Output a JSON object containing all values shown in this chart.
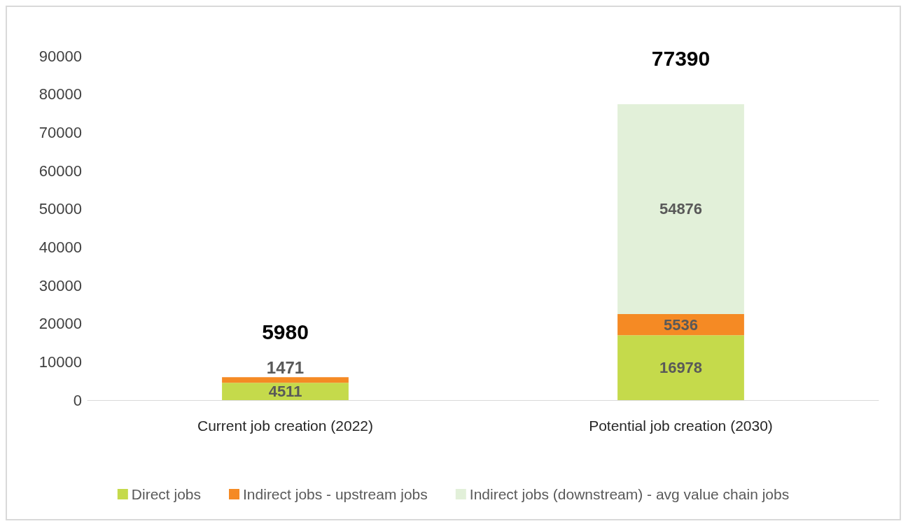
{
  "chart_data": {
    "type": "bar",
    "stacked": true,
    "categories": [
      "Current job creation (2022)",
      "Potential job creation (2030)"
    ],
    "series": [
      {
        "name": "Direct jobs",
        "color": "#c5da4b",
        "values": [
          4511,
          16978
        ]
      },
      {
        "name": "Indirect jobs - upstream jobs",
        "color": "#f58a24",
        "values": [
          1471,
          5536
        ]
      },
      {
        "name": "Indirect jobs (downstream) - avg value chain jobs",
        "color": "#e2f0d9",
        "values": [
          null,
          54876
        ]
      }
    ],
    "totals": [
      "5980",
      "77390"
    ],
    "data_labels": true,
    "ylim": [
      0,
      90000
    ],
    "yticks": [
      0,
      10000,
      20000,
      30000,
      40000,
      50000,
      60000,
      70000,
      80000,
      90000
    ],
    "grid": false,
    "legend": "bottom"
  }
}
